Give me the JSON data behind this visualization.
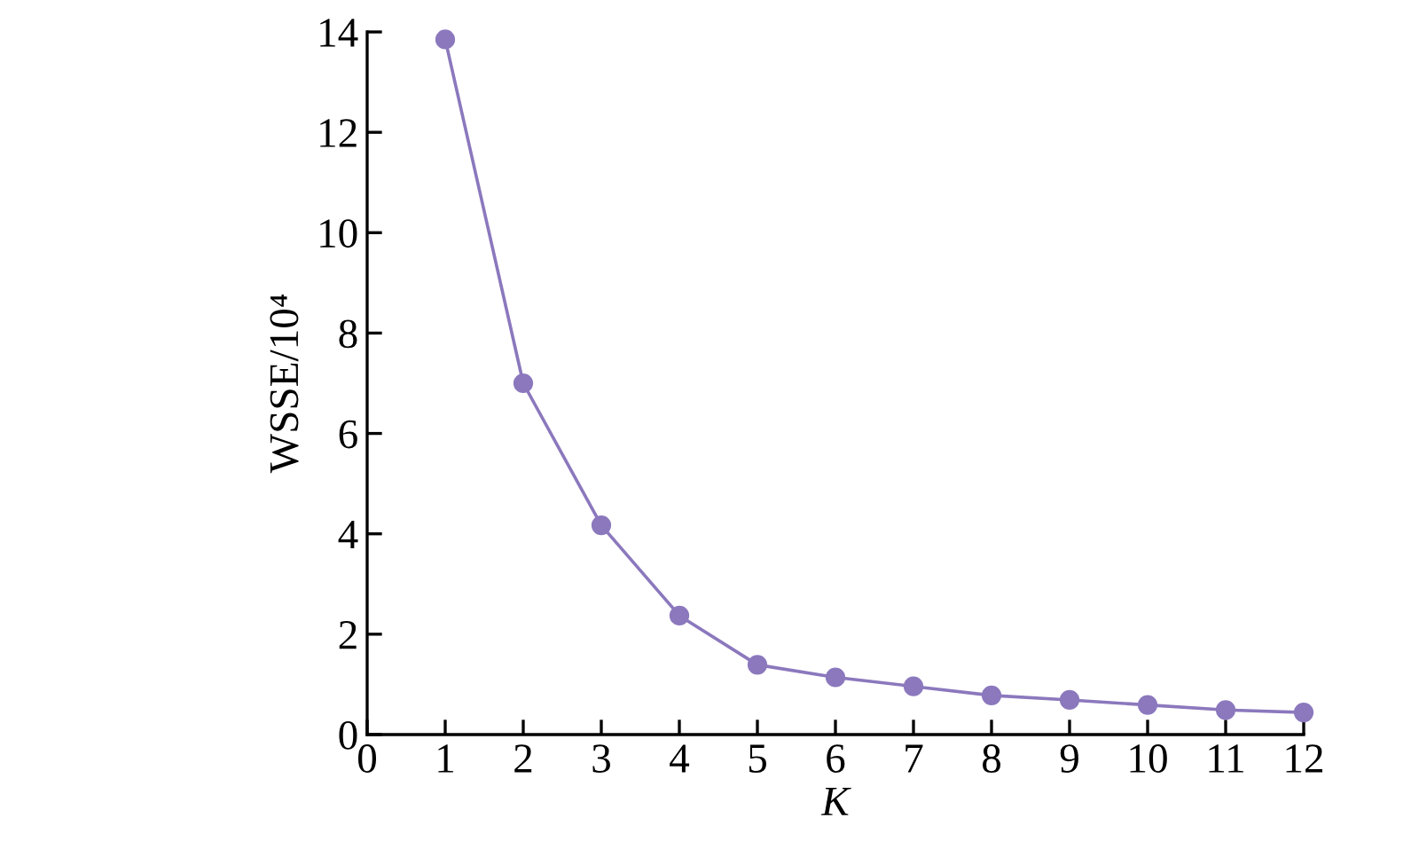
{
  "chart_data": {
    "type": "line",
    "xlabel": "K",
    "ylabel": "WSSE/10⁴",
    "x": [
      1,
      2,
      3,
      4,
      5,
      6,
      7,
      8,
      9,
      10,
      11,
      12
    ],
    "series": [
      {
        "color": "#8b78bd",
        "values": [
          13.85,
          7.0,
          4.17,
          2.37,
          1.39,
          1.14,
          0.96,
          0.78,
          0.69,
          0.59,
          0.49,
          0.44
        ]
      }
    ],
    "xlim": [
      0,
      12
    ],
    "xticks": [
      0,
      1,
      2,
      3,
      4,
      5,
      6,
      7,
      8,
      9,
      10,
      11,
      12
    ],
    "ylim": [
      0,
      14
    ],
    "yticks": [
      0,
      2,
      4,
      6,
      8,
      10,
      12,
      14
    ],
    "marker": "circle",
    "line_style": "solid",
    "grid": false,
    "legend": false
  }
}
